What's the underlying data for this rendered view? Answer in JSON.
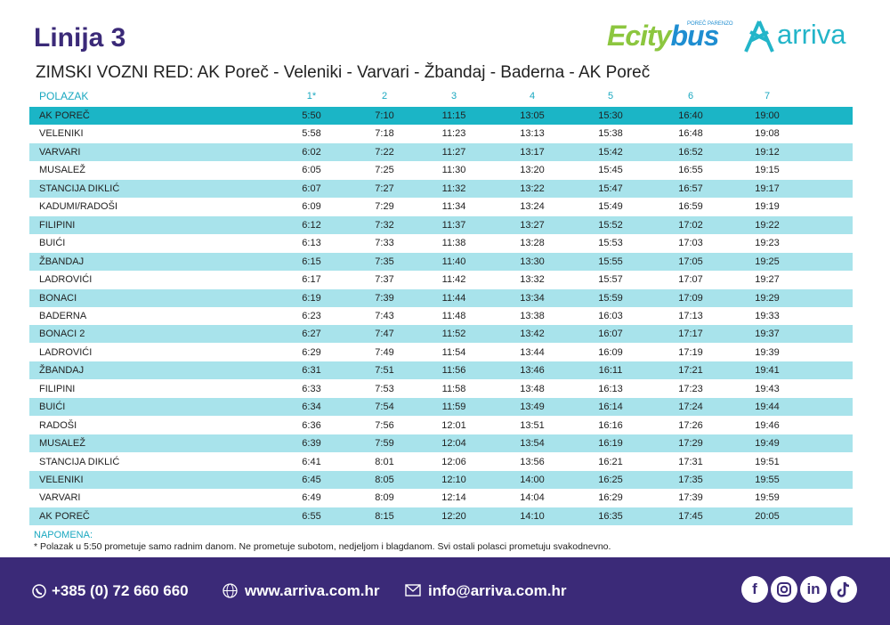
{
  "header": {
    "title": "Linija 3",
    "subtitle": "ZIMSKI VOZNI RED: AK Poreč - Veleniki - Varvari - Žbandaj - Baderna - AK Poreč",
    "logo_ecity": "Ecity",
    "logo_bus": "bus",
    "logo_tag": "POREČ PARENZO",
    "logo_arriva": "arriva"
  },
  "table": {
    "header": [
      "POLAZAK",
      "1*",
      "2",
      "3",
      "4",
      "5",
      "6",
      "7"
    ],
    "rows": [
      [
        "AK POREČ",
        "5:50",
        "7:10",
        "11:15",
        "13:05",
        "15:30",
        "16:40",
        "19:00"
      ],
      [
        "VELENIKI",
        "5:58",
        "7:18",
        "11:23",
        "13:13",
        "15:38",
        "16:48",
        "19:08"
      ],
      [
        "VARVARI",
        "6:02",
        "7:22",
        "11:27",
        "13:17",
        "15:42",
        "16:52",
        "19:12"
      ],
      [
        "MUSALEŽ",
        "6:05",
        "7:25",
        "11:30",
        "13:20",
        "15:45",
        "16:55",
        "19:15"
      ],
      [
        "STANCIJA DIKLIĆ",
        "6:07",
        "7:27",
        "11:32",
        "13:22",
        "15:47",
        "16:57",
        "19:17"
      ],
      [
        "KADUMI/RADOŠI",
        "6:09",
        "7:29",
        "11:34",
        "13:24",
        "15:49",
        "16:59",
        "19:19"
      ],
      [
        "FILIPINI",
        "6:12",
        "7:32",
        "11:37",
        "13:27",
        "15:52",
        "17:02",
        "19:22"
      ],
      [
        "BUIĆI",
        "6:13",
        "7:33",
        "11:38",
        "13:28",
        "15:53",
        "17:03",
        "19:23"
      ],
      [
        "ŽBANDAJ",
        "6:15",
        "7:35",
        "11:40",
        "13:30",
        "15:55",
        "17:05",
        "19:25"
      ],
      [
        "LADROVIĆI",
        "6:17",
        "7:37",
        "11:42",
        "13:32",
        "15:57",
        "17:07",
        "19:27"
      ],
      [
        "BONACI",
        "6:19",
        "7:39",
        "11:44",
        "13:34",
        "15:59",
        "17:09",
        "19:29"
      ],
      [
        "BADERNA",
        "6:23",
        "7:43",
        "11:48",
        "13:38",
        "16:03",
        "17:13",
        "19:33"
      ],
      [
        "BONACI 2",
        "6:27",
        "7:47",
        "11:52",
        "13:42",
        "16:07",
        "17:17",
        "19:37"
      ],
      [
        "LADROVIĆI",
        "6:29",
        "7:49",
        "11:54",
        "13:44",
        "16:09",
        "17:19",
        "19:39"
      ],
      [
        "ŽBANDAJ",
        "6:31",
        "7:51",
        "11:56",
        "13:46",
        "16:11",
        "17:21",
        "19:41"
      ],
      [
        "FILIPINI",
        "6:33",
        "7:53",
        "11:58",
        "13:48",
        "16:13",
        "17:23",
        "19:43"
      ],
      [
        "BUIĆI",
        "6:34",
        "7:54",
        "11:59",
        "13:49",
        "16:14",
        "17:24",
        "19:44"
      ],
      [
        "RADOŠI",
        "6:36",
        "7:56",
        "12:01",
        "13:51",
        "16:16",
        "17:26",
        "19:46"
      ],
      [
        "MUSALEŽ",
        "6:39",
        "7:59",
        "12:04",
        "13:54",
        "16:19",
        "17:29",
        "19:49"
      ],
      [
        "STANCIJA DIKLIĆ",
        "6:41",
        "8:01",
        "12:06",
        "13:56",
        "16:21",
        "17:31",
        "19:51"
      ],
      [
        "VELENIKI",
        "6:45",
        "8:05",
        "12:10",
        "14:00",
        "16:25",
        "17:35",
        "19:55"
      ],
      [
        "VARVARI",
        "6:49",
        "8:09",
        "12:14",
        "14:04",
        "16:29",
        "17:39",
        "19:59"
      ],
      [
        "AK POREČ",
        "6:55",
        "8:15",
        "12:20",
        "14:10",
        "16:35",
        "17:45",
        "20:05"
      ]
    ]
  },
  "note": {
    "label": "NAPOMENA:",
    "text": "* Polazak u 5:50 prometuje samo radnim danom. Ne prometuje subotom, nedjeljom i blagdanom. Svi ostali polasci prometuju svakodnevno."
  },
  "footer": {
    "phone": "+385 (0) 72 660 660",
    "web": "www.arriva.com.hr",
    "email": "info@arriva.com.hr",
    "social": [
      "f",
      "in"
    ]
  }
}
